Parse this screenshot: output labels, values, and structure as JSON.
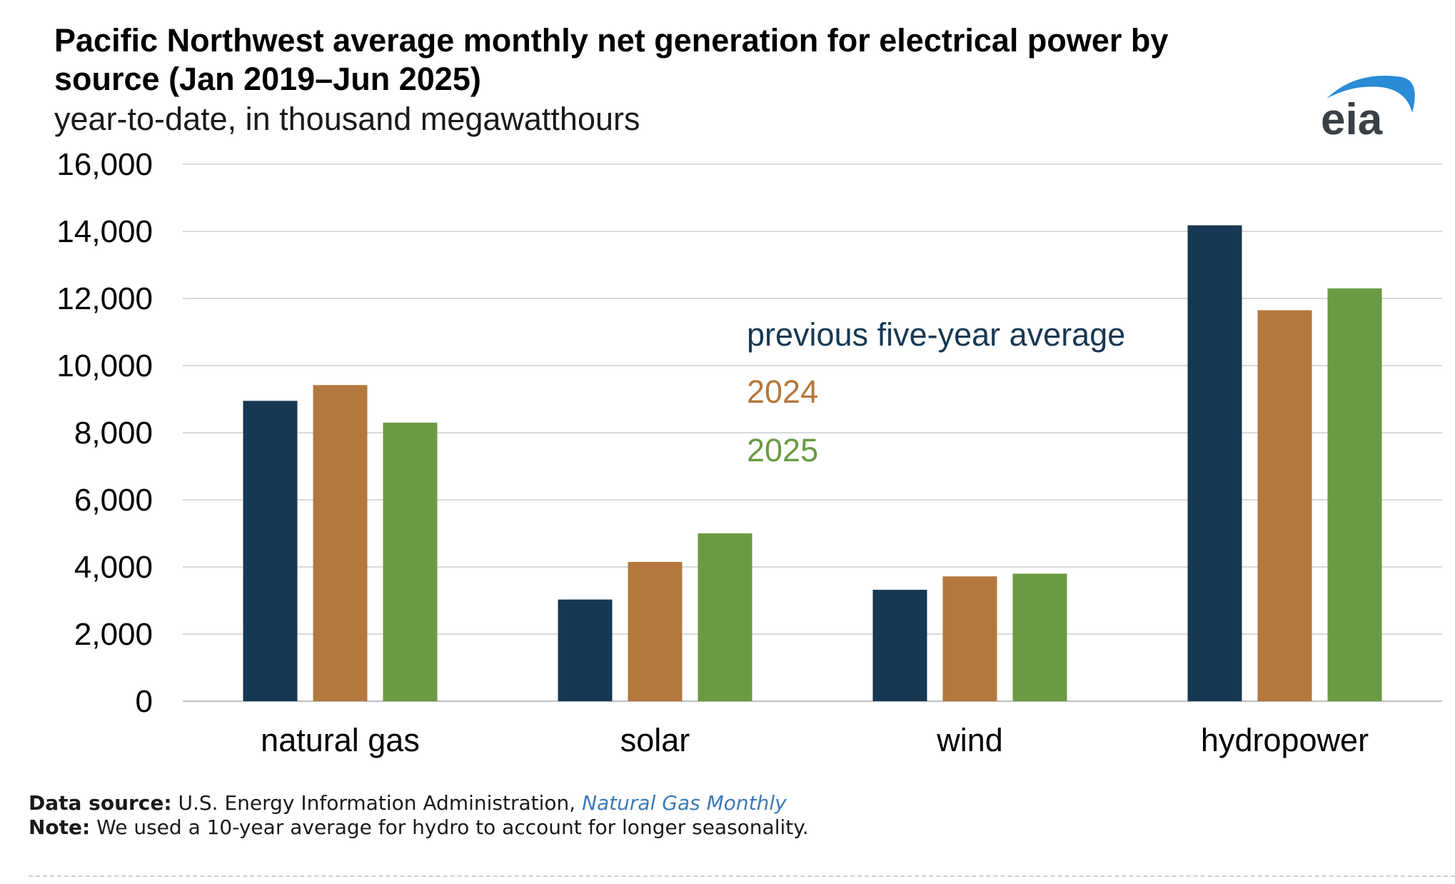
{
  "header": {
    "title": "Pacific Northwest average monthly net generation for electrical power by source (Jan 2019–Jun 2025)",
    "subtitle": "year-to-date, in thousand megawatthours"
  },
  "logo": {
    "text": "eia",
    "color": "#3a4046",
    "arc_color": "#2a8bd6"
  },
  "colors": {
    "grid": "#d9d9d9",
    "axis": "#bfbfbf"
  },
  "chart_data": {
    "type": "bar",
    "title": "Pacific Northwest average monthly net generation for electrical power by source (Jan 2019–Jun 2025)",
    "subtitle": "year-to-date, in thousand megawatthours",
    "xlabel": "",
    "ylabel": "",
    "ylim": [
      0,
      16000
    ],
    "yticks": [
      0,
      2000,
      4000,
      6000,
      8000,
      10000,
      12000,
      14000,
      16000
    ],
    "ytick_labels": [
      "0",
      "2,000",
      "4,000",
      "6,000",
      "8,000",
      "10,000",
      "12,000",
      "14,000",
      "16,000"
    ],
    "grid": true,
    "legend_position": "center",
    "categories": [
      "natural gas",
      "solar",
      "wind",
      "hydropower"
    ],
    "series": [
      {
        "name": "previous five-year average",
        "color": "#173853",
        "values": [
          8950,
          3030,
          3320,
          14180
        ]
      },
      {
        "name": "2024",
        "color": "#b4783c",
        "values": [
          9420,
          4150,
          3720,
          11650
        ]
      },
      {
        "name": "2025",
        "color": "#6a9a42",
        "values": [
          8300,
          5000,
          3800,
          12300
        ]
      }
    ]
  },
  "footer": {
    "source_label": "Data source:",
    "source_text": "U.S. Energy Information Administration,",
    "source_title": "Natural Gas Monthly",
    "note_label": "Note:",
    "note_text": "We used a 10-year average for hydro to account for longer seasonality."
  }
}
